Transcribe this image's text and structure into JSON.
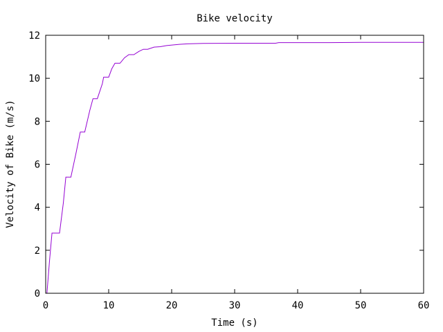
{
  "chart_data": {
    "type": "line",
    "title": "Bike velocity",
    "xlabel": "Time (s)",
    "ylabel": "Velocity of Bike (m/s)",
    "xlim": [
      0,
      60
    ],
    "ylim": [
      0,
      12
    ],
    "xticks": [
      0,
      10,
      20,
      30,
      40,
      50,
      60
    ],
    "yticks": [
      0,
      2,
      4,
      6,
      8,
      10,
      12
    ],
    "grid": false,
    "line_color": "#9400d3",
    "series": [
      {
        "x": [
          0.2,
          0.6,
          1.0,
          1.2,
          2.2,
          2.8,
          3.2,
          4.0,
          4.8,
          5.5,
          6.2,
          7.0,
          7.5,
          8.2,
          9.0,
          9.2,
          10.0,
          10.5,
          11.0,
          11.8,
          12.5,
          13.2,
          14.0,
          14.8,
          15.5,
          16.2,
          17.2,
          18.2,
          19.2,
          20.2,
          21.2,
          22.5,
          25.0,
          30.0,
          36.5,
          37.0,
          45.0,
          50.0,
          60.0
        ],
        "y": [
          0.0,
          1.5,
          2.8,
          2.8,
          2.8,
          4.2,
          5.4,
          5.4,
          6.5,
          7.5,
          7.5,
          8.5,
          9.05,
          9.05,
          9.75,
          10.05,
          10.05,
          10.45,
          10.7,
          10.7,
          10.95,
          11.1,
          11.1,
          11.25,
          11.35,
          11.35,
          11.45,
          11.47,
          11.52,
          11.55,
          11.58,
          11.6,
          11.62,
          11.63,
          11.63,
          11.66,
          11.66,
          11.67,
          11.67
        ]
      }
    ]
  }
}
